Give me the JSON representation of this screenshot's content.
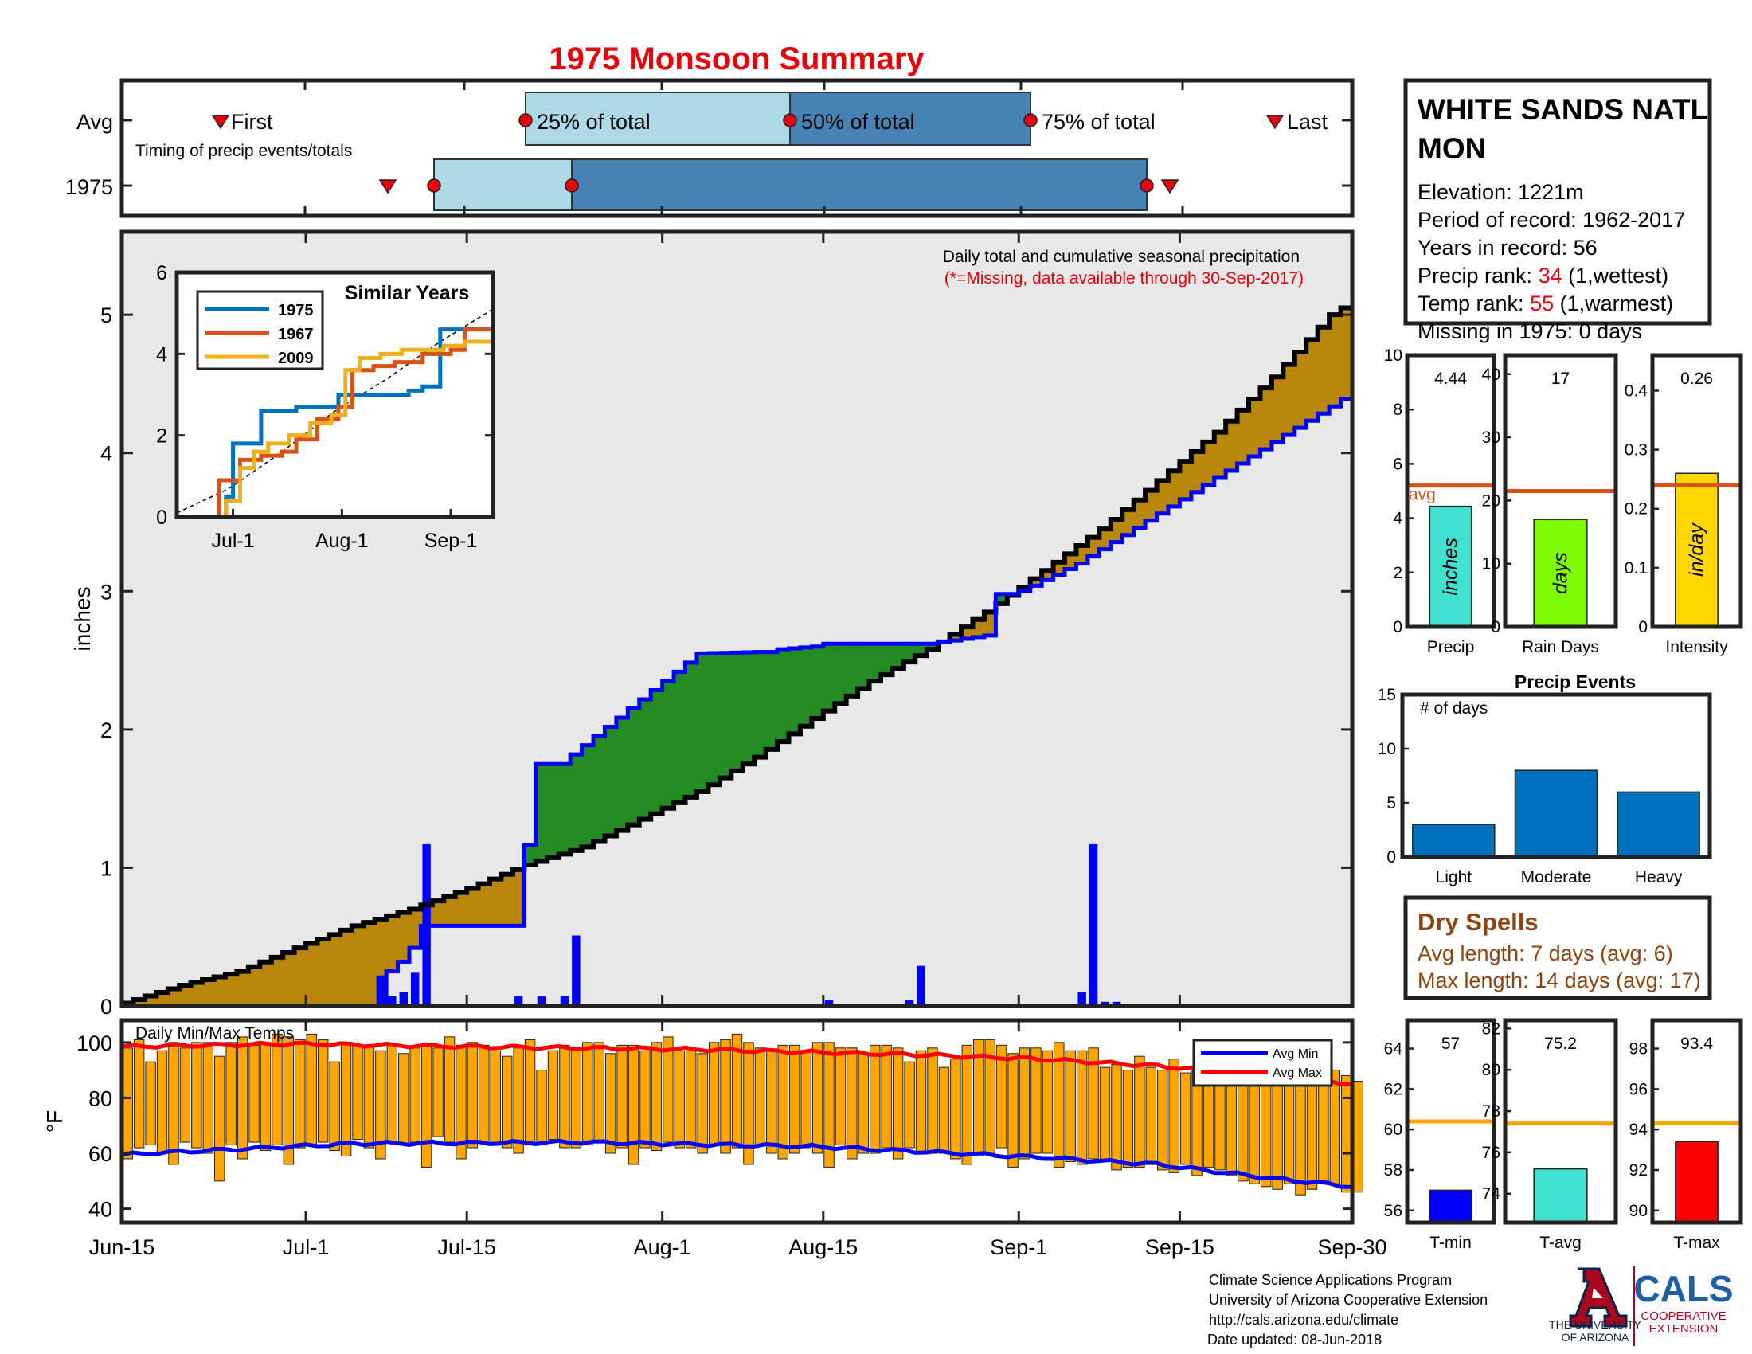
{
  "title": "1975 Monsoon Summary",
  "colors": {
    "title": "#e8000b",
    "precip_fill": "#b8860b",
    "above_fill": "#228b22",
    "avg_blue": "#0000ff",
    "bar_blue": "#0000ff",
    "ltblue": "#add8e6",
    "steel": "#4682b4",
    "temp_bar": "#ffa500",
    "red": "#ff0000",
    "cyan": "#40e0d0",
    "green": "#7cfc00",
    "gold": "#ffd700",
    "orange_line": "#d95319",
    "events_bar": "#0072bd",
    "dry": "#8b4513",
    "ua_red": "#ab0520",
    "ua_blue": "#0c234b",
    "cals_blue": "#1f5ea8"
  },
  "timing": {
    "row_labels": [
      "Avg",
      "1975"
    ],
    "first_label": "First",
    "last_label": "Last",
    "pct_labels": [
      "25% of total",
      "50% of total",
      "75% of total"
    ],
    "caption": "Timing of precip events/totals",
    "avg": {
      "first": "Jun-24",
      "p25": "Jul-18",
      "p50": "Aug-08",
      "p75": "Aug-27",
      "last": "Sep-23"
    },
    "y1975": {
      "first": "Jul-07",
      "p25": "Jul-10",
      "p50": "Jul-21",
      "p75": "Sep-10",
      "last": "Sep-12"
    }
  },
  "main": {
    "ylabel": "inches",
    "caption": "Daily total and cumulative seasonal precipitation",
    "missing_note": "(*=Missing, data available through 30-Sep-2017)",
    "y_ticks": [
      "0",
      "1",
      "2",
      "3",
      "4",
      "5"
    ],
    "x_ticks": [
      "Jun-15",
      "Jul-1",
      "Jul-15",
      "Aug-1",
      "Aug-15",
      "Sep-1",
      "Sep-15",
      "Sep-30"
    ]
  },
  "inset": {
    "title": "Similar Years",
    "y_ticks": [
      "0",
      "2",
      "4",
      "6"
    ],
    "x_ticks": [
      "Jul-1",
      "Aug-1",
      "Sep-1"
    ],
    "legend": [
      "1975",
      "1967",
      "2009"
    ]
  },
  "station": {
    "name_line1": "WHITE SANDS NATL",
    "name_line2": "MON",
    "elevation": "Elevation: 1221m",
    "period": "Period of record: 1962-2017",
    "years": "Years in record: 56",
    "precip_rank_prefix": "Precip rank: ",
    "precip_rank": "34",
    "precip_rank_suffix": " (1,wettest)",
    "temp_rank_prefix": "Temp rank: ",
    "temp_rank": "55",
    "temp_rank_suffix": " (1,warmest)",
    "missing": "Missing in 1975: 0 days"
  },
  "summary_bars": [
    {
      "name": "Precip",
      "value_label": "4.44",
      "value": 4.44,
      "avg": 5.2,
      "unit": "inches",
      "ticks": [
        "0",
        "2",
        "4",
        "6",
        "8",
        "10"
      ],
      "avg_label": "avg"
    },
    {
      "name": "Rain Days",
      "value_label": "17",
      "value": 17,
      "avg": 21.5,
      "unit": "days",
      "ticks": [
        "0",
        "10",
        "20",
        "30",
        "40"
      ]
    },
    {
      "name": "Intensity",
      "value_label": "0.26",
      "value": 0.26,
      "avg": 0.24,
      "unit": "in/day",
      "ticks": [
        "0",
        "0.1",
        "0.2",
        "0.3",
        "0.4"
      ]
    }
  ],
  "events": {
    "title": "Precip Events",
    "ylabel": "# of days",
    "ticks": [
      "0",
      "5",
      "10",
      "15"
    ],
    "categories": [
      "Light",
      "Moderate",
      "Heavy"
    ],
    "values": [
      3,
      8,
      6
    ]
  },
  "dry_spells": {
    "title": "Dry Spells",
    "avg": "Avg length: 7 days (avg: 6)",
    "max": "Max length: 14 days (avg: 17)"
  },
  "temps": {
    "caption": "Daily Min/Max Temps",
    "ylabel": "°F",
    "y_ticks": [
      "40",
      "60",
      "80",
      "100"
    ],
    "legend": [
      "Avg Min",
      "Avg Max"
    ]
  },
  "temp_summary": [
    {
      "name": "T-min",
      "value_label": "57",
      "value": 57,
      "avg": 60.4,
      "ticks": [
        "56",
        "58",
        "60",
        "62",
        "64"
      ]
    },
    {
      "name": "T-avg",
      "value_label": "75.2",
      "value": 75.2,
      "avg": 77.4,
      "ticks": [
        "74",
        "76",
        "78",
        "80",
        "82"
      ]
    },
    {
      "name": "T-max",
      "value_label": "93.4",
      "value": 93.4,
      "avg": 94.3,
      "ticks": [
        "90",
        "92",
        "94",
        "96",
        "98"
      ]
    }
  ],
  "footer": {
    "lines": [
      "Climate Science Applications Program",
      "University of Arizona Cooperative Extension",
      "http://cals.arizona.edu/climate",
      " Date updated: 08-Jun-2018"
    ],
    "ua_line1": "THE UNIVERSITY",
    "ua_line2": "OF ARIZONA",
    "cals": "CALS",
    "cals_line1": "COOPERATIVE",
    "cals_line2": "EXTENSION"
  },
  "chart_data": [
    {
      "type": "line",
      "title": "Daily total and cumulative seasonal precipitation",
      "ylabel": "inches",
      "xlim": [
        "Jun-15",
        "Sep-30"
      ],
      "ylim": [
        0,
        5.6
      ],
      "cumulative_avg": {
        "days": [
          0,
          5,
          10,
          15,
          20,
          25,
          30,
          35,
          40,
          45,
          50,
          55,
          60,
          65,
          70,
          75,
          80,
          85,
          90,
          95,
          100,
          105,
          107
        ],
        "values": [
          0.02,
          0.15,
          0.25,
          0.42,
          0.58,
          0.7,
          0.85,
          1.02,
          1.15,
          1.35,
          1.55,
          1.8,
          2.08,
          2.35,
          2.58,
          2.85,
          3.15,
          3.45,
          3.8,
          4.15,
          4.55,
          5.0,
          5.1
        ]
      },
      "cumulative_1975": {
        "days": [
          0,
          22,
          23,
          24,
          25,
          26,
          34,
          36,
          38,
          39,
          50,
          55,
          56,
          57,
          60,
          61,
          70,
          75,
          76,
          77,
          78,
          83,
          107
        ],
        "values": [
          0,
          0,
          0.25,
          0.32,
          0.42,
          0.58,
          0.58,
          1.75,
          1.75,
          1.82,
          2.55,
          2.56,
          2.56,
          2.58,
          2.6,
          2.62,
          2.62,
          2.68,
          2.98,
          2.98,
          3.0,
          3.2,
          4.44
        ]
      },
      "daily_1975": {
        "days": [
          22,
          23,
          24,
          25,
          26,
          34,
          36,
          38,
          39,
          52,
          61,
          68,
          69,
          83,
          84,
          85,
          86
        ],
        "values": [
          0.22,
          0.07,
          0.1,
          0.24,
          1.17,
          0.07,
          0.07,
          0.07,
          0.51,
          0.01,
          0.04,
          0.04,
          0.29,
          0.1,
          1.17,
          0.03,
          0.03
        ]
      }
    },
    {
      "type": "line",
      "title": "Similar Years",
      "ylim": [
        0,
        6
      ],
      "series": [
        {
          "name": "1975",
          "x": [
            0,
            12,
            14,
            16,
            20,
            24,
            30,
            34,
            40,
            46,
            50,
            56,
            66,
            70,
            74,
            75,
            78,
            90
          ],
          "y": [
            0,
            0,
            0.5,
            1.8,
            1.8,
            2.6,
            2.6,
            2.7,
            2.7,
            3.0,
            3.0,
            3.0,
            3.1,
            3.2,
            3.2,
            4.6,
            4.6,
            4.6
          ]
        },
        {
          "name": "1967",
          "x": [
            0,
            8,
            12,
            18,
            24,
            30,
            34,
            40,
            46,
            50,
            56,
            62,
            66,
            70,
            74,
            78,
            82,
            90
          ],
          "y": [
            0,
            0,
            0.9,
            1.4,
            1.5,
            1.6,
            1.9,
            2.4,
            2.7,
            3.6,
            3.7,
            3.8,
            3.8,
            4.0,
            4.0,
            4.1,
            4.6,
            4.6
          ]
        },
        {
          "name": "2009",
          "x": [
            0,
            10,
            14,
            18,
            22,
            26,
            32,
            38,
            44,
            48,
            52,
            58,
            64,
            70,
            76,
            82,
            90
          ],
          "y": [
            0,
            0,
            0.4,
            1.2,
            1.6,
            1.8,
            2.0,
            2.3,
            2.5,
            3.6,
            3.9,
            4.0,
            4.1,
            4.1,
            4.2,
            4.3,
            4.3
          ]
        }
      ],
      "avg_curve": {
        "x": [
          0,
          15,
          30,
          45,
          60,
          75,
          90
        ],
        "y": [
          0.1,
          0.7,
          1.6,
          2.6,
          3.4,
          4.3,
          5.1
        ]
      }
    },
    {
      "type": "bar",
      "title": "Precip Events",
      "categories": [
        "Light",
        "Moderate",
        "Heavy"
      ],
      "values": [
        3,
        8,
        6
      ],
      "ylim": [
        0,
        15
      ]
    },
    {
      "type": "bar",
      "categories": [
        "Precip",
        "Rain Days",
        "Intensity"
      ],
      "values": [
        4.44,
        17,
        0.26
      ],
      "averages": [
        5.2,
        21.5,
        0.24
      ]
    },
    {
      "type": "bar",
      "categories": [
        "T-min",
        "T-avg",
        "T-max"
      ],
      "values": [
        57,
        75.2,
        93.4
      ],
      "averages": [
        60.4,
        77.4,
        94.3
      ]
    },
    {
      "type": "bar",
      "title": "Daily Min/Max Temps",
      "ylabel": "°F",
      "ylim": [
        35,
        108
      ],
      "series": [
        {
          "name": "Avg Min"
        },
        {
          "name": "Avg Max"
        }
      ],
      "avg_min": {
        "days": [
          0,
          20,
          40,
          60,
          80,
          90,
          100,
          107
        ],
        "values": [
          59.5,
          63.5,
          64,
          62.5,
          58.5,
          56,
          51,
          48
        ]
      },
      "avg_max": {
        "days": [
          0,
          15,
          30,
          50,
          70,
          80,
          90,
          100,
          107
        ],
        "values": [
          98.5,
          99.5,
          98.5,
          97.5,
          95.5,
          94,
          91.5,
          88,
          85
        ]
      },
      "daily_max": [
        98,
        101,
        93,
        97,
        100,
        98,
        100,
        100,
        95,
        100,
        102,
        99,
        100,
        103,
        102,
        101,
        103,
        101,
        93,
        100,
        99,
        99,
        97,
        99,
        96,
        98,
        99,
        98,
        102,
        99,
        100,
        99,
        97,
        95,
        98,
        101,
        90,
        97,
        99,
        97,
        100,
        100,
        96,
        99,
        99,
        97,
        100,
        102,
        97,
        98,
        96,
        100,
        101,
        103,
        100,
        98,
        97,
        99,
        99,
        97,
        100,
        100,
        98,
        98,
        96,
        99,
        99,
        98,
        93,
        97,
        98,
        91,
        94,
        99,
        101,
        101,
        99,
        96,
        98,
        98,
        97,
        100,
        97,
        97,
        98,
        91,
        92,
        90,
        95,
        91,
        90,
        94,
        89,
        90,
        92,
        91,
        96,
        88,
        86,
        85,
        87,
        90,
        88,
        90,
        92,
        90,
        88,
        86
      ],
      "daily_min": [
        58,
        62,
        63,
        60,
        56,
        64,
        62,
        60,
        50,
        63,
        58,
        64,
        61,
        63,
        56,
        62,
        63,
        64,
        61,
        59,
        65,
        62,
        58,
        64,
        63,
        64,
        55,
        66,
        64,
        58,
        62,
        64,
        64,
        62,
        60,
        63,
        63,
        65,
        62,
        62,
        63,
        64,
        60,
        62,
        56,
        62,
        61,
        64,
        62,
        62,
        60,
        63,
        60,
        62,
        56,
        63,
        60,
        58,
        60,
        62,
        60,
        55,
        63,
        58,
        60,
        60,
        62,
        58,
        62,
        60,
        60,
        60,
        58,
        56,
        59,
        60,
        62,
        55,
        58,
        60,
        60,
        55,
        57,
        56,
        58,
        57,
        54,
        55,
        55,
        56,
        54,
        53,
        56,
        52,
        55,
        54,
        52,
        50,
        49,
        48,
        47,
        49,
        45,
        47,
        50,
        49,
        46,
        46
      ]
    }
  ]
}
